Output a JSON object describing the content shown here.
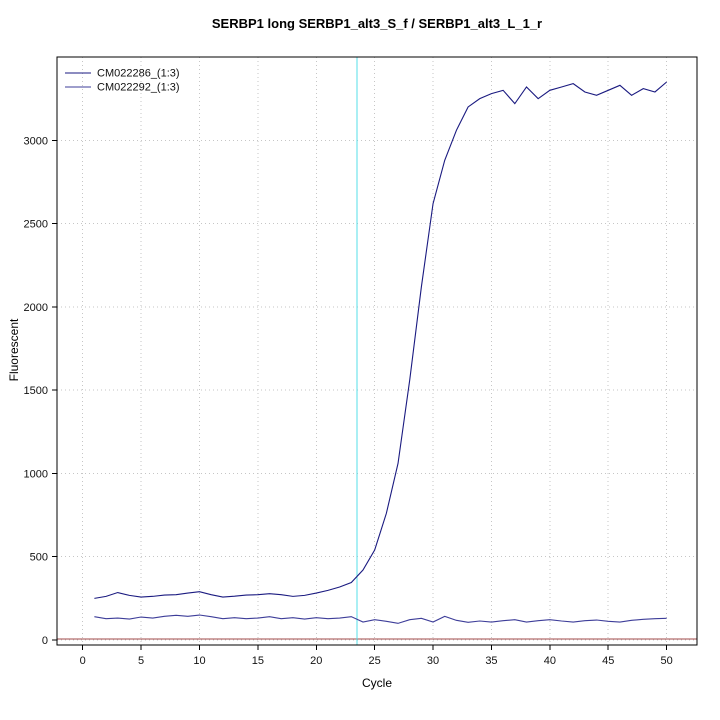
{
  "chart_data": {
    "type": "line",
    "title": "SERBP1 long SERBP1_alt3_S_f / SERBP1_alt3_L_1_r",
    "xlabel": "Cycle",
    "ylabel": "Fluorescent",
    "xlim": [
      -2.2,
      52.6
    ],
    "ylim": [
      -30,
      3500
    ],
    "xticks": [
      0,
      5,
      10,
      15,
      20,
      25,
      30,
      35,
      40,
      45,
      50
    ],
    "yticks": [
      0,
      500,
      1000,
      1500,
      2000,
      2500,
      3000
    ],
    "grid": "dotted",
    "legend_position": "top-left",
    "colors": {
      "grid": "#c6c6c6",
      "axis": "#000000",
      "box": "#000000"
    },
    "threshold_vline": {
      "x": 23.5,
      "color": "#55dfe8"
    },
    "baseline_hline": {
      "y": 5,
      "color": "#a04848"
    },
    "series": [
      {
        "name": "CM022286_(1:3)",
        "color": "#1a1a80",
        "x": [
          1,
          2,
          3,
          4,
          5,
          6,
          7,
          8,
          9,
          10,
          11,
          12,
          13,
          14,
          15,
          16,
          17,
          18,
          19,
          20,
          21,
          22,
          23,
          24,
          25,
          26,
          27,
          28,
          29,
          30,
          31,
          32,
          33,
          34,
          35,
          36,
          37,
          38,
          39,
          40,
          41,
          42,
          43,
          44,
          45,
          46,
          47,
          48,
          49,
          50
        ],
        "values": [
          250,
          262,
          285,
          268,
          258,
          262,
          270,
          272,
          282,
          290,
          272,
          258,
          263,
          270,
          272,
          278,
          272,
          262,
          268,
          282,
          298,
          318,
          345,
          420,
          540,
          760,
          1060,
          1560,
          2120,
          2620,
          2880,
          3060,
          3200,
          3250,
          3280,
          3300,
          3220,
          3320,
          3250,
          3300,
          3320,
          3340,
          3290,
          3270,
          3300,
          3330,
          3270,
          3310,
          3290,
          3350
        ]
      },
      {
        "name": "CM022292_(1:3)",
        "color": "#3d3d99",
        "x": [
          1,
          2,
          3,
          4,
          5,
          6,
          7,
          8,
          9,
          10,
          11,
          12,
          13,
          14,
          15,
          16,
          17,
          18,
          19,
          20,
          21,
          22,
          23,
          24,
          25,
          26,
          27,
          28,
          29,
          30,
          31,
          32,
          33,
          34,
          35,
          36,
          37,
          38,
          39,
          40,
          41,
          42,
          43,
          44,
          45,
          46,
          47,
          48,
          49,
          50
        ],
        "values": [
          140,
          128,
          132,
          126,
          138,
          132,
          142,
          148,
          142,
          150,
          140,
          128,
          134,
          128,
          132,
          140,
          128,
          134,
          126,
          134,
          128,
          132,
          140,
          108,
          122,
          112,
          100,
          122,
          130,
          108,
          142,
          118,
          106,
          114,
          108,
          116,
          122,
          108,
          116,
          122,
          114,
          108,
          116,
          120,
          112,
          108,
          118,
          124,
          128,
          130
        ]
      }
    ]
  }
}
